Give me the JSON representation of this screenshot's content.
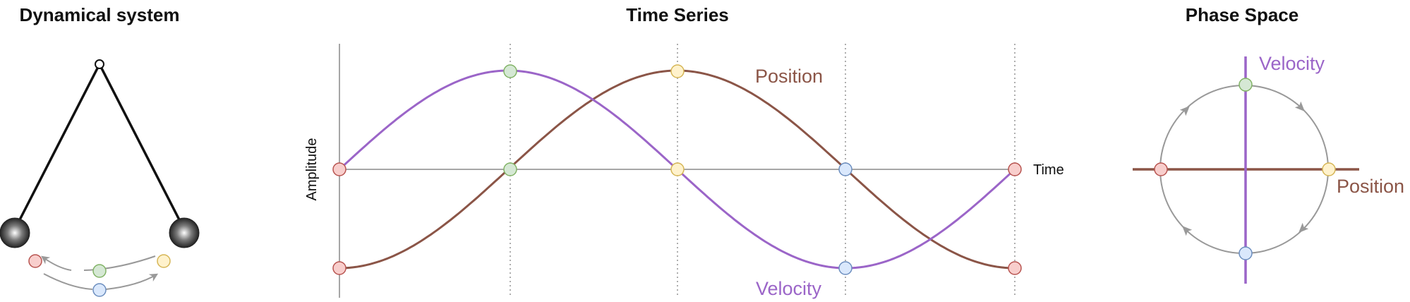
{
  "panels": {
    "system": {
      "title": "Dynamical system"
    },
    "timeseries": {
      "title": "Time Series",
      "y_axis_label": "Amplitude",
      "x_axis_label": "Time",
      "position_label": "Position",
      "velocity_label": "Velocity"
    },
    "phase": {
      "title": "Phase Space",
      "velocity_label": "Velocity",
      "position_label": "Position"
    }
  },
  "colors": {
    "position": "#8b5547",
    "velocity": "#9b65c8",
    "axis": "#888888",
    "arrow": "#999999",
    "red_marker": {
      "fill": "#f8cecc",
      "stroke": "#b85450"
    },
    "green_marker": {
      "fill": "#d5e8d4",
      "stroke": "#82b366"
    },
    "yellow_marker": {
      "fill": "#fff2cc",
      "stroke": "#d6b656"
    },
    "blue_marker": {
      "fill": "#dae8fc",
      "stroke": "#6c8ebf"
    }
  },
  "icons": [
    "pendulum-pivot-icon",
    "pendulum-bob-icon",
    "phase-arrow-icon"
  ]
}
